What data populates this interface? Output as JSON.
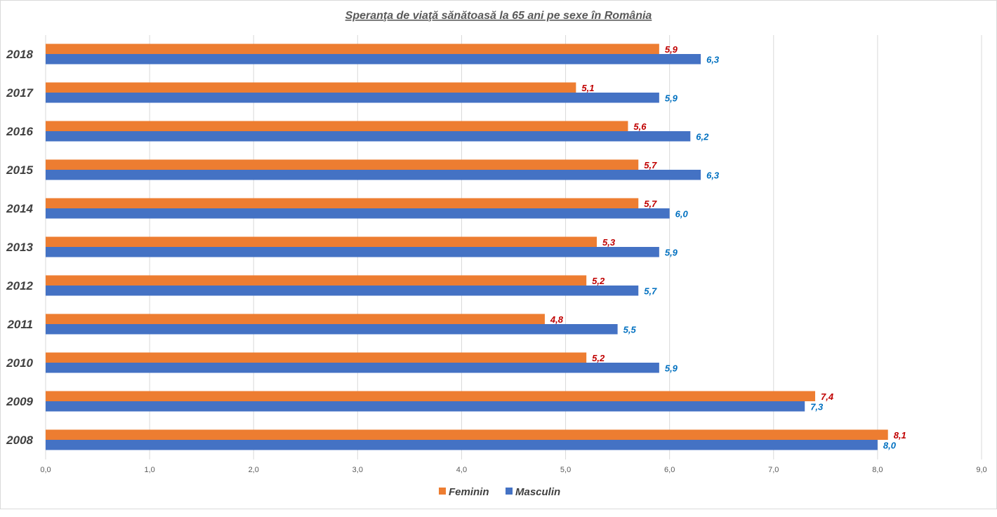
{
  "chart_data": {
    "type": "bar",
    "orientation": "horizontal",
    "title": "Speranţa de viaţă sănătoasă la 65 ani pe sexe în România",
    "categories": [
      "2018",
      "2017",
      "2016",
      "2015",
      "2014",
      "2013",
      "2012",
      "2011",
      "2010",
      "2009",
      "2008"
    ],
    "series": [
      {
        "name": "Feminin",
        "color": "#ED7D31",
        "label_color": "#C00000",
        "values": [
          5.9,
          5.1,
          5.6,
          5.7,
          5.7,
          5.3,
          5.2,
          4.8,
          5.2,
          7.4,
          8.1
        ],
        "labels": [
          "5,9",
          "5,1",
          "5,6",
          "5,7",
          "5,7",
          "5,3",
          "5,2",
          "4,8",
          "5,2",
          "7,4",
          "8,1"
        ]
      },
      {
        "name": "Masculin",
        "color": "#4472C4",
        "label_color": "#0070C0",
        "values": [
          6.3,
          5.9,
          6.2,
          6.3,
          6.0,
          5.9,
          5.7,
          5.5,
          5.9,
          7.3,
          8.0
        ],
        "labels": [
          "6,3",
          "5,9",
          "6,2",
          "6,3",
          "6,0",
          "5,9",
          "5,7",
          "5,5",
          "5,9",
          "7,3",
          "8,0"
        ]
      }
    ],
    "xlim": [
      0,
      9
    ],
    "xticks": [
      "0,0",
      "1,0",
      "2,0",
      "3,0",
      "4,0",
      "5,0",
      "6,0",
      "7,0",
      "8,0",
      "9,0"
    ],
    "grid": true,
    "legend": "bottom"
  }
}
